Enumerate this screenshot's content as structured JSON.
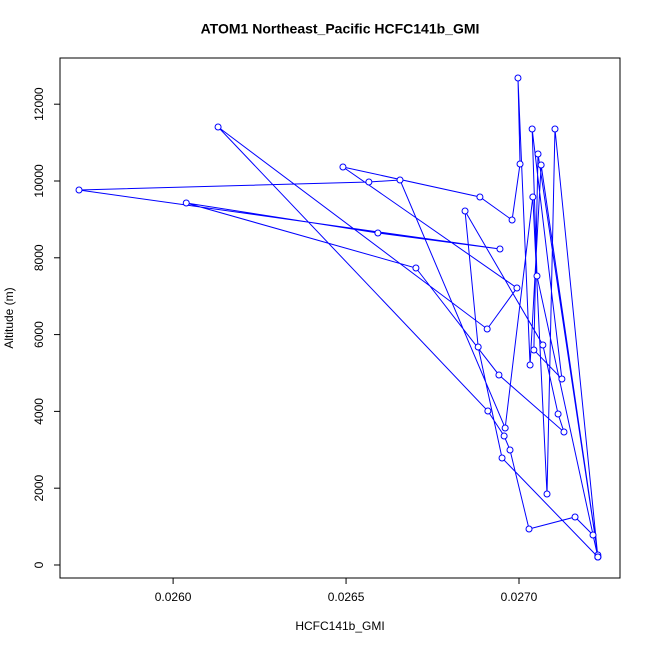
{
  "chart_data": {
    "type": "line",
    "title": "ATOM1 Northeast_Pacific HCFC141b_GMI",
    "x_label": "HCFC141b_GMI",
    "y_label": "Altitude (m)",
    "xlim": [
      0.025673,
      0.027292
    ],
    "ylim": [
      -339,
      13203
    ],
    "xticks": [
      {
        "value": 0.026,
        "label": "0.0260"
      },
      {
        "value": 0.0265,
        "label": "0.0265"
      },
      {
        "value": 0.027,
        "label": "0.0270"
      }
    ],
    "yticks": [
      0,
      2000,
      4000,
      6000,
      8000,
      10000,
      12000
    ],
    "grid": false,
    "markers": true,
    "x": [
      0.027228,
      0.027214,
      0.027162,
      0.027029,
      0.026974,
      0.026957,
      0.02691,
      0.02613,
      0.026908,
      0.026994,
      0.026491,
      0.026887,
      0.02698,
      0.027003,
      0.026997,
      0.027032,
      0.027064,
      0.027228,
      0.027055,
      0.027043,
      0.027124,
      0.027038,
      0.027052,
      0.027228,
      0.027104,
      0.027081,
      0.02704,
      0.02696,
      0.026656,
      0.026566,
      0.025728,
      0.026945,
      0.026592,
      0.026038,
      0.026702,
      0.026942,
      0.02713,
      0.027113,
      0.027069,
      0.026844,
      0.026882,
      0.026951,
      0.027228
    ],
    "series": [
      {
        "name": "HCFC141b_GMI",
        "color": "#0000ff",
        "values": [
          208,
          781,
          1250,
          938,
          2995,
          3359,
          4010,
          11406,
          6146,
          7214,
          10365,
          9583,
          8984,
          10443,
          12682,
          5208,
          10417,
          260,
          10703,
          5599,
          4844,
          11354,
          7526,
          208,
          11354,
          1849,
          9583,
          3568,
          10026,
          9974,
          9766,
          8229,
          8646,
          9427,
          7734,
          4948,
          3464,
          3932,
          5729,
          9219,
          5677,
          2786,
          208
        ]
      }
    ]
  }
}
